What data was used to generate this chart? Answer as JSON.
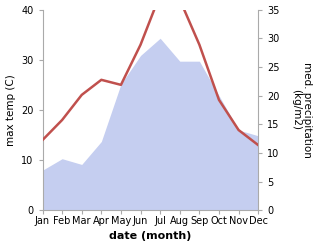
{
  "months": [
    "Jan",
    "Feb",
    "Mar",
    "Apr",
    "May",
    "Jun",
    "Jul",
    "Aug",
    "Sep",
    "Oct",
    "Nov",
    "Dec"
  ],
  "max_temp": [
    14,
    18,
    23,
    26,
    25,
    33,
    43,
    42,
    33,
    22,
    16,
    13
  ],
  "precipitation": [
    7,
    9,
    8,
    12,
    22,
    27,
    30,
    26,
    26,
    20,
    14,
    13
  ],
  "temp_color": "#c0504d",
  "precip_fill_color": "#c5cef0",
  "precip_edge_color": "#c5cef0",
  "ylabel_left": "max temp (C)",
  "ylabel_right": "med. precipitation\n(kg/m2)",
  "xlabel": "date (month)",
  "ylim_left": [
    0,
    40
  ],
  "ylim_right": [
    0,
    35
  ],
  "yticks_left": [
    0,
    10,
    20,
    30,
    40
  ],
  "yticks_right": [
    0,
    5,
    10,
    15,
    20,
    25,
    30,
    35
  ],
  "background_color": "#ffffff",
  "temp_linewidth": 1.8,
  "xlabel_fontsize": 8,
  "ylabel_fontsize": 7.5,
  "tick_fontsize": 7
}
